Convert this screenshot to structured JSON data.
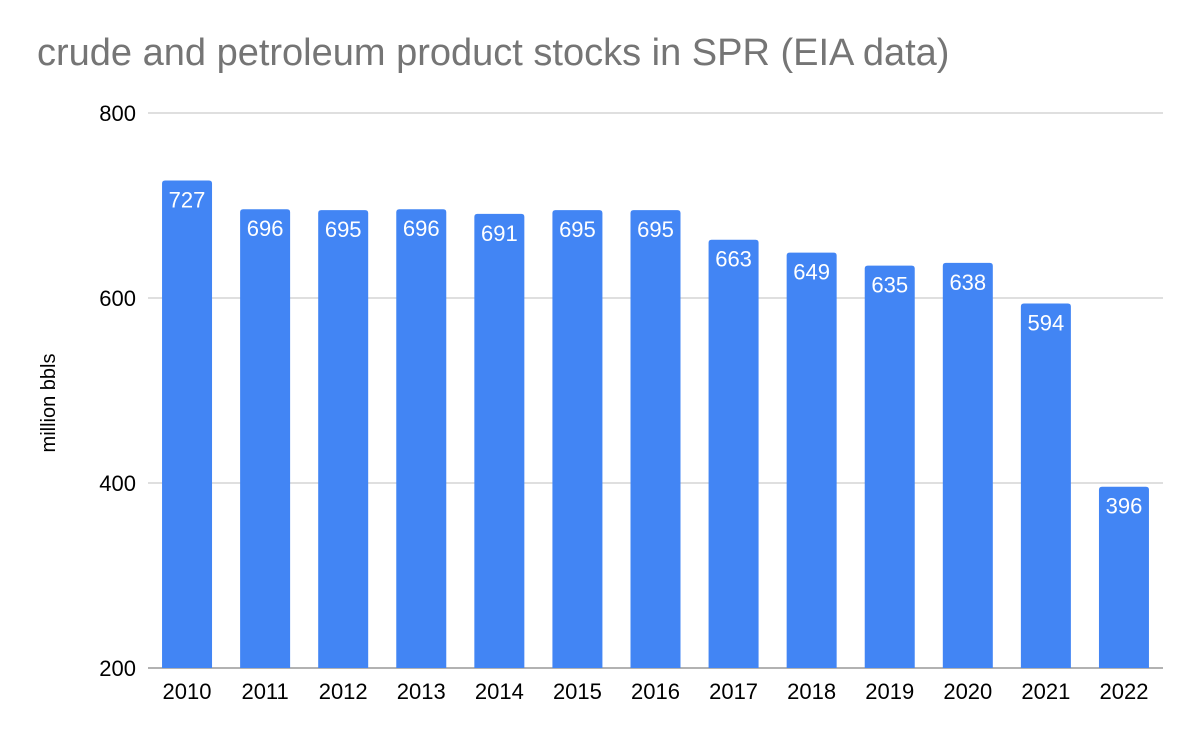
{
  "chart_data": {
    "type": "bar",
    "title": "crude and petroleum product stocks in SPR (EIA data)",
    "xlabel": "",
    "ylabel": "million bbls",
    "categories": [
      "2010",
      "2011",
      "2012",
      "2013",
      "2014",
      "2015",
      "2016",
      "2017",
      "2018",
      "2019",
      "2020",
      "2021",
      "2022"
    ],
    "values": [
      727,
      696,
      695,
      696,
      691,
      695,
      695,
      663,
      649,
      635,
      638,
      594,
      396
    ],
    "data_labels": [
      "727",
      "696",
      "695",
      "696",
      "691",
      "695",
      "695",
      "663",
      "649",
      "635",
      "638",
      "594",
      "396"
    ],
    "ylim": [
      200,
      800
    ],
    "yticks": [
      200,
      400,
      600,
      800
    ],
    "ytick_labels": [
      "200",
      "400",
      "600",
      "800"
    ],
    "grid": true,
    "legend": "none",
    "colors": {
      "bar": "#4285f4",
      "grid": "#cccccc",
      "axis": "#999999",
      "title": "#757575",
      "data_label": "#ffffff"
    }
  }
}
